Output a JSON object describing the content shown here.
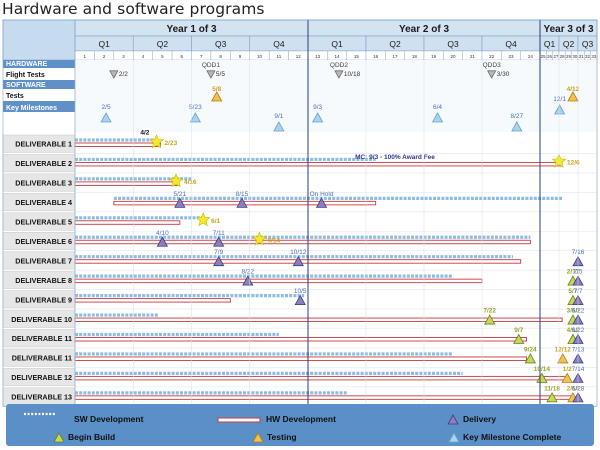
{
  "page_title": "Hardware and software programs",
  "colors": {
    "header_bg": "#c7dbee",
    "section_bg": "#5f91c8",
    "sw_bar": "#8fbce3",
    "hw_bar": "#c6383d",
    "milestone_text": "#4f6fc0",
    "gold_text": "#c8a21e",
    "green_text": "#8fa726",
    "star": "#f3ea2a",
    "legend_bg": "#5b8fc7"
  },
  "chart_data": {
    "type": "gantt",
    "time_axis": {
      "years": [
        "Year 1 of 3",
        "Year 2 of 3",
        "Year 3 of 3"
      ],
      "quarters": [
        "Q1",
        "Q2",
        "Q3",
        "Q4",
        "Q1",
        "Q2",
        "Q3",
        "Q4",
        "Q1",
        "Q2",
        "Q3"
      ],
      "months": [
        "1",
        "2",
        "3",
        "4",
        "5",
        "6",
        "7",
        "8",
        "9",
        "10",
        "11",
        "12",
        "13",
        "14",
        "15",
        "16",
        "17",
        "18",
        "19",
        "20",
        "21",
        "22",
        "23",
        "24",
        "25",
        "26",
        "27",
        "28",
        "29",
        "30",
        "31",
        "32",
        "33"
      ]
    },
    "header_rows": [
      {
        "label": "HARDWARE",
        "style": "section"
      },
      {
        "label": "Flight Tests",
        "style": "label"
      },
      {
        "label": "SOFTWARE",
        "style": "section"
      },
      {
        "label": "Tests",
        "style": "label"
      },
      {
        "label": "Key Milestones",
        "style": "section"
      }
    ],
    "flight_tests": [
      {
        "month": 3.0,
        "label": "2/2"
      },
      {
        "month": 8.0,
        "label": "5/5",
        "name": "QDD1"
      },
      {
        "month": 14.6,
        "label": "10/18",
        "name": "QDD2"
      },
      {
        "month": 22.5,
        "label": "3/30",
        "name": "QDD3"
      }
    ],
    "software_tests": [
      {
        "month": 8.3,
        "label": "5/8",
        "type": "testing"
      },
      {
        "month": 30.2,
        "label": "4/12",
        "type": "testing"
      }
    ],
    "key_milestones": [
      {
        "month": 2.6,
        "label": "2/5"
      },
      {
        "month": 7.2,
        "label": "5/23"
      },
      {
        "month": 11.5,
        "label": "9/1"
      },
      {
        "month": 13.5,
        "label": "9/3"
      },
      {
        "month": 19.7,
        "label": "6/4"
      },
      {
        "month": 23.8,
        "label": "8/27"
      },
      {
        "month": 28.1,
        "label": "12/1"
      }
    ],
    "mc_annotation": {
      "month": 17.5,
      "text": "MC: 9/3 - 100% Award Fee"
    },
    "deliverables": [
      {
        "name": "DELIVERABLE 1",
        "sw": [
          1,
          5.3
        ],
        "hw": [
          1,
          5.4
        ],
        "markers": [
          {
            "type": "star",
            "month": 5.2,
            "label": "2/23"
          }
        ],
        "extra_labels": [
          {
            "month": 4.6,
            "text": "4/2"
          }
        ]
      },
      {
        "name": "DELIVERABLE 2",
        "sw": [
          1,
          16.5
        ],
        "hw": [
          1,
          28.3
        ],
        "markers": [
          {
            "type": "star",
            "month": 28.0,
            "label": "12/6"
          }
        ]
      },
      {
        "name": "DELIVERABLE 3",
        "sw": [
          1,
          7.0
        ],
        "hw": [
          1,
          6.3
        ],
        "markers": [
          {
            "type": "star",
            "month": 6.2,
            "label": "4/16"
          }
        ]
      },
      {
        "name": "DELIVERABLE 4",
        "sw": [
          3,
          28.5
        ],
        "hw": [
          3,
          16.5
        ],
        "markers": [
          {
            "type": "delivery",
            "month": 6.4,
            "label": "5/21"
          },
          {
            "type": "delivery",
            "month": 9.6,
            "label": "8/15"
          },
          {
            "type": "delivery",
            "month": 13.7,
            "label": "On Hold"
          }
        ]
      },
      {
        "name": "DELIVERABLE 5",
        "sw": [
          1,
          7.6
        ],
        "hw": [
          1,
          6.4
        ],
        "markers": [
          {
            "type": "star",
            "month": 7.6,
            "label": "6/1"
          }
        ]
      },
      {
        "name": "DELIVERABLE 6",
        "sw": [
          1,
          24.5
        ],
        "hw": [
          1,
          24.5
        ],
        "markers": [
          {
            "type": "delivery",
            "month": 5.5,
            "label": "4/10"
          },
          {
            "type": "delivery",
            "month": 8.4,
            "label": "7/11"
          },
          {
            "type": "star",
            "month": 10.5,
            "label": "9/14"
          }
        ]
      },
      {
        "name": "DELIVERABLE 7",
        "sw": [
          1,
          23.6
        ],
        "hw": [
          1,
          24.0
        ],
        "markers": [
          {
            "type": "delivery",
            "month": 8.4,
            "label": "7/9"
          },
          {
            "type": "delivery",
            "month": 12.5,
            "label": "10/12"
          },
          {
            "type": "delivery",
            "month": 31.0,
            "label": "7/16"
          }
        ]
      },
      {
        "name": "DELIVERABLE 8",
        "sw": [
          1,
          20.5
        ],
        "hw": [
          1,
          22.0
        ],
        "markers": [
          {
            "type": "delivery",
            "month": 9.9,
            "label": "8/22"
          },
          {
            "type": "build",
            "month": 30.2,
            "label": "2/11"
          },
          {
            "type": "delivery",
            "month": 31.0,
            "label": "7/5"
          }
        ]
      },
      {
        "name": "DELIVERABLE 9",
        "sw": [
          1,
          12.8
        ],
        "hw": [
          1,
          9.0
        ],
        "markers": [
          {
            "type": "delivery",
            "month": 12.6,
            "label": "10/5"
          },
          {
            "type": "build",
            "month": 30.2,
            "label": "5/7"
          },
          {
            "type": "delivery",
            "month": 31.0,
            "label": "7/7"
          }
        ]
      },
      {
        "name": "DELIVERABLE 10",
        "sw": [
          1,
          5.3
        ],
        "hw": [
          1,
          28.5
        ],
        "markers": [
          {
            "type": "build",
            "month": 22.4,
            "label": "7/22"
          },
          {
            "type": "build",
            "month": 30.2,
            "label": "3/10"
          },
          {
            "type": "delivery",
            "month": 31.0,
            "label": "6/22"
          }
        ]
      },
      {
        "name": "DELIVERABLE 11",
        "sw": [
          1,
          11.5
        ],
        "hw": [
          1,
          24.3
        ],
        "markers": [
          {
            "type": "build",
            "month": 23.9,
            "label": "9/7"
          },
          {
            "type": "build",
            "month": 30.2,
            "label": "4/12"
          },
          {
            "type": "delivery",
            "month": 31.0,
            "label": "6/22"
          }
        ]
      },
      {
        "name": "DELIVERABLE 11",
        "sw": [
          1,
          20.5
        ],
        "hw": [
          1,
          24.3
        ],
        "markers": [
          {
            "type": "build",
            "month": 24.5,
            "label": "9/24"
          },
          {
            "type": "testing",
            "month": 28.6,
            "label": "12/12"
          },
          {
            "type": "delivery",
            "month": 31.0,
            "label": "7/13"
          }
        ]
      },
      {
        "name": "DELIVERABLE 12",
        "sw": [
          1,
          21.0
        ],
        "hw": [
          1,
          29.3
        ],
        "markers": [
          {
            "type": "build",
            "month": 25.3,
            "label": "10/14"
          },
          {
            "type": "testing",
            "month": 29.3,
            "label": "1/2"
          },
          {
            "type": "delivery",
            "month": 31.0,
            "label": "7/14"
          }
        ]
      },
      {
        "name": "DELIVERABLE 13",
        "sw": [
          1,
          15.0
        ],
        "hw": [
          1,
          30.3
        ],
        "markers": [
          {
            "type": "build",
            "month": 26.9,
            "label": "11/18"
          },
          {
            "type": "testing",
            "month": 30.2,
            "label": "2/14"
          },
          {
            "type": "delivery",
            "month": 31.0,
            "label": "6/28"
          }
        ]
      }
    ]
  },
  "legend": {
    "sw_development": "SW Development",
    "hw_development": "HW Development",
    "delivery": "Delivery",
    "begin_build": "Begin Build",
    "testing": "Testing",
    "key_milestone_complete": "Key Milestone Complete"
  }
}
